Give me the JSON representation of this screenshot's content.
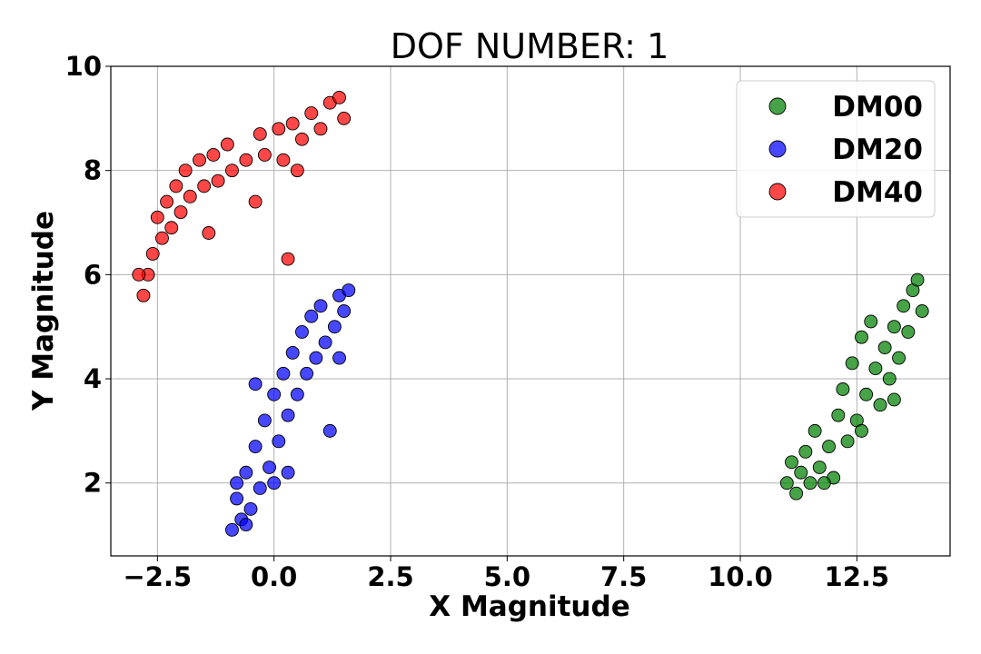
{
  "chart_data": {
    "type": "scatter",
    "title": "DOF NUMBER: 1",
    "xlabel": "X Magnitude",
    "ylabel": "Y Magnitude",
    "xlim": [
      -3.5,
      14.5
    ],
    "ylim": [
      0.6,
      10
    ],
    "xticks": [
      -2.5,
      0.0,
      2.5,
      5.0,
      7.5,
      10.0,
      12.5
    ],
    "xtick_labels": [
      "−2.5",
      "0.0",
      "2.5",
      "5.0",
      "7.5",
      "10.0",
      "12.5"
    ],
    "yticks": [
      2,
      4,
      6,
      8,
      10
    ],
    "ytick_labels": [
      "2",
      "4",
      "6",
      "8",
      "10"
    ],
    "grid": true,
    "legend_position": "top-right",
    "series": [
      {
        "name": "DM00",
        "color": "#008000",
        "points": [
          [
            11.0,
            2.0
          ],
          [
            11.2,
            1.8
          ],
          [
            11.3,
            2.2
          ],
          [
            11.5,
            2.0
          ],
          [
            11.4,
            2.6
          ],
          [
            11.7,
            2.3
          ],
          [
            11.6,
            3.0
          ],
          [
            11.9,
            2.7
          ],
          [
            12.0,
            2.1
          ],
          [
            12.1,
            3.3
          ],
          [
            12.3,
            2.8
          ],
          [
            12.2,
            3.8
          ],
          [
            12.5,
            3.2
          ],
          [
            12.4,
            4.3
          ],
          [
            12.7,
            3.7
          ],
          [
            12.6,
            4.8
          ],
          [
            12.9,
            4.2
          ],
          [
            12.8,
            5.1
          ],
          [
            13.1,
            4.6
          ],
          [
            13.0,
            3.5
          ],
          [
            13.3,
            5.0
          ],
          [
            13.2,
            4.0
          ],
          [
            13.5,
            5.4
          ],
          [
            13.4,
            4.4
          ],
          [
            13.7,
            5.7
          ],
          [
            13.6,
            4.9
          ],
          [
            13.8,
            5.9
          ],
          [
            13.9,
            5.3
          ],
          [
            11.1,
            2.4
          ],
          [
            11.8,
            2.0
          ],
          [
            12.6,
            3.0
          ],
          [
            13.3,
            3.6
          ]
        ]
      },
      {
        "name": "DM20",
        "color": "#0000ff",
        "points": [
          [
            -0.9,
            1.1
          ],
          [
            -0.7,
            1.3
          ],
          [
            -0.8,
            1.7
          ],
          [
            -0.5,
            1.5
          ],
          [
            -0.6,
            2.2
          ],
          [
            -0.3,
            1.9
          ],
          [
            -0.4,
            2.7
          ],
          [
            -0.1,
            2.3
          ],
          [
            -0.2,
            3.2
          ],
          [
            0.1,
            2.8
          ],
          [
            0.0,
            3.7
          ],
          [
            0.3,
            3.3
          ],
          [
            0.2,
            4.1
          ],
          [
            0.5,
            3.7
          ],
          [
            0.4,
            4.5
          ],
          [
            0.7,
            4.1
          ],
          [
            0.6,
            4.9
          ],
          [
            0.9,
            4.4
          ],
          [
            0.8,
            5.2
          ],
          [
            1.1,
            4.7
          ],
          [
            1.0,
            5.4
          ],
          [
            1.3,
            5.0
          ],
          [
            1.4,
            5.6
          ],
          [
            1.6,
            5.7
          ],
          [
            1.5,
            5.3
          ],
          [
            -0.4,
            3.9
          ],
          [
            0.3,
            2.2
          ],
          [
            -0.8,
            2.0
          ],
          [
            1.2,
            3.0
          ],
          [
            1.4,
            4.4
          ],
          [
            -0.6,
            1.2
          ],
          [
            0.0,
            2.0
          ]
        ]
      },
      {
        "name": "DM40",
        "color": "#ff0000",
        "points": [
          [
            -2.8,
            5.6
          ],
          [
            -2.7,
            6.0
          ],
          [
            -2.6,
            6.4
          ],
          [
            -2.4,
            6.7
          ],
          [
            -2.5,
            7.1
          ],
          [
            -2.2,
            6.9
          ],
          [
            -2.3,
            7.4
          ],
          [
            -2.0,
            7.2
          ],
          [
            -2.1,
            7.7
          ],
          [
            -1.8,
            7.5
          ],
          [
            -1.9,
            8.0
          ],
          [
            -1.5,
            7.7
          ],
          [
            -1.6,
            8.2
          ],
          [
            -1.2,
            7.8
          ],
          [
            -1.3,
            8.3
          ],
          [
            -0.9,
            8.0
          ],
          [
            -1.0,
            8.5
          ],
          [
            -0.6,
            8.2
          ],
          [
            -0.3,
            8.7
          ],
          [
            -0.2,
            8.3
          ],
          [
            0.1,
            8.8
          ],
          [
            0.2,
            8.2
          ],
          [
            0.4,
            8.9
          ],
          [
            0.6,
            8.6
          ],
          [
            0.8,
            9.1
          ],
          [
            1.0,
            8.8
          ],
          [
            1.2,
            9.3
          ],
          [
            1.4,
            9.4
          ],
          [
            1.5,
            9.0
          ],
          [
            0.3,
            6.3
          ],
          [
            -2.9,
            6.0
          ],
          [
            -0.4,
            7.4
          ],
          [
            -1.4,
            6.8
          ],
          [
            0.5,
            8.0
          ]
        ]
      }
    ]
  }
}
